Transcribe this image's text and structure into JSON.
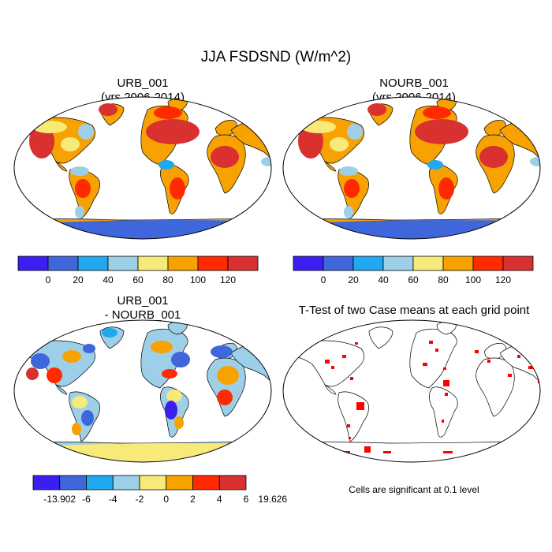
{
  "main_title": "JJA FSDSND (W/m^2)",
  "panels": {
    "urb": {
      "title_line1": "URB_001",
      "title_line2": "(yrs 2006-2014)"
    },
    "nourb": {
      "title_line1": "NOURB_001",
      "title_line2": "(yrs 2006-2014)"
    },
    "diff": {
      "title_line1": "URB_001",
      "title_line2": "- NOURB_001"
    },
    "ttest": {
      "title": "T-Test of two Case means at each grid point",
      "note": "Cells are significant at 0.1 level"
    }
  },
  "chart_data": [
    {
      "type": "heatmap",
      "title": "URB_001 (yrs 2006-2014)",
      "variable": "JJA FSDSND (W/m^2)",
      "colorbar": {
        "tick_labels": [
          "0",
          "20",
          "40",
          "60",
          "80",
          "100",
          "120"
        ],
        "colors": [
          "#3b1ef0",
          "#3f66da",
          "#20a8f0",
          "#9dd0e8",
          "#f8ea78",
          "#f8a202",
          "#ff2a00",
          "#d93030"
        ]
      }
    },
    {
      "type": "heatmap",
      "title": "NOURB_001 (yrs 2006-2014)",
      "variable": "JJA FSDSND (W/m^2)",
      "colorbar": {
        "tick_labels": [
          "0",
          "20",
          "40",
          "60",
          "80",
          "100",
          "120"
        ],
        "colors": [
          "#3b1ef0",
          "#3f66da",
          "#20a8f0",
          "#9dd0e8",
          "#f8ea78",
          "#f8a202",
          "#ff2a00",
          "#d93030"
        ]
      }
    },
    {
      "type": "heatmap",
      "title": "URB_001 - NOURB_001",
      "colorbar": {
        "tick_labels": [
          "-13.902",
          "-6",
          "-4",
          "-2",
          "0",
          "2",
          "4",
          "6",
          "19.626"
        ],
        "colors": [
          "#3b1ef0",
          "#3f66da",
          "#20a8f0",
          "#9dd0e8",
          "#f8ea78",
          "#f8a202",
          "#ff2a00",
          "#d93030"
        ]
      }
    },
    {
      "type": "heatmap",
      "title": "T-Test of two Case means at each grid point",
      "significance_level": 0.1,
      "significant_color": "#ff0000"
    }
  ]
}
